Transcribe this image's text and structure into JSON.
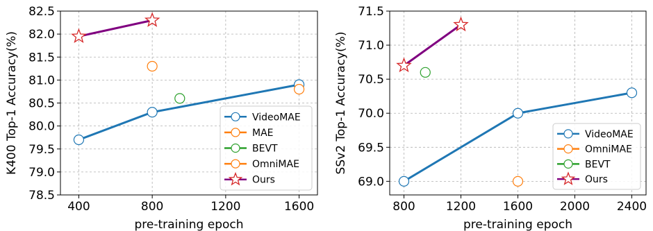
{
  "chart_data": [
    {
      "type": "line",
      "xlabel": "pre-training epoch",
      "ylabel": "K400 Top-1 Accuracy(%)",
      "xlim": [
        300,
        1700
      ],
      "ylim": [
        78.5,
        82.5
      ],
      "xticks": [
        400,
        800,
        1200,
        1600
      ],
      "yticks": [
        78.5,
        79.0,
        79.5,
        80.0,
        80.5,
        81.0,
        81.5,
        82.0,
        82.5
      ],
      "ytick_labels": [
        "78.5",
        "79.0",
        "79.5",
        "80.0",
        "80.5",
        "81.0",
        "81.5",
        "82.0",
        "82.5"
      ],
      "grid": true,
      "legend_position": "lower-right",
      "series": [
        {
          "name": "VideoMAE",
          "color": "#1f77b4",
          "marker": "circle",
          "line": true,
          "points": [
            [
              400,
              79.7
            ],
            [
              800,
              80.3
            ],
            [
              1600,
              80.9
            ]
          ]
        },
        {
          "name": "MAE",
          "color": "#ff7f0e",
          "marker": "circle",
          "line": false,
          "points": [
            [
              800,
              81.3
            ]
          ]
        },
        {
          "name": "BEVT",
          "color": "#2ca02c",
          "marker": "circle",
          "line": false,
          "points": [
            [
              950,
              80.6
            ]
          ]
        },
        {
          "name": "OmniMAE",
          "color": "#ff7f0e",
          "marker": "circle",
          "line": false,
          "points": [
            [
              1600,
              80.8
            ]
          ]
        },
        {
          "name": "Ours",
          "color": "#800080",
          "marker": "star",
          "marker_color": "#d62728",
          "line": true,
          "points": [
            [
              400,
              81.95
            ],
            [
              800,
              82.3
            ]
          ]
        }
      ]
    },
    {
      "type": "line",
      "xlabel": "pre-training epoch",
      "ylabel": "SSv2 Top-1 Accuracy(%)",
      "xlim": [
        700,
        2500
      ],
      "ylim": [
        68.8,
        71.5
      ],
      "xticks": [
        800,
        1200,
        1600,
        2000,
        2400
      ],
      "yticks": [
        69.0,
        69.5,
        70.0,
        70.5,
        71.0,
        71.5
      ],
      "ytick_labels": [
        "69.0",
        "69.5",
        "70.0",
        "70.5",
        "71.0",
        "71.5"
      ],
      "grid": true,
      "legend_position": "lower-right",
      "series": [
        {
          "name": "VideoMAE",
          "color": "#1f77b4",
          "marker": "circle",
          "line": true,
          "points": [
            [
              800,
              69.0
            ],
            [
              1600,
              70.0
            ],
            [
              2400,
              70.3
            ]
          ]
        },
        {
          "name": "OmniMAE",
          "color": "#ff7f0e",
          "marker": "circle",
          "line": false,
          "points": [
            [
              1600,
              69.0
            ]
          ]
        },
        {
          "name": "BEVT",
          "color": "#2ca02c",
          "marker": "circle",
          "line": false,
          "points": [
            [
              950,
              70.6
            ]
          ]
        },
        {
          "name": "Ours",
          "color": "#800080",
          "marker": "star",
          "marker_color": "#d62728",
          "line": true,
          "points": [
            [
              800,
              70.7
            ],
            [
              1200,
              71.3
            ]
          ]
        }
      ]
    }
  ]
}
